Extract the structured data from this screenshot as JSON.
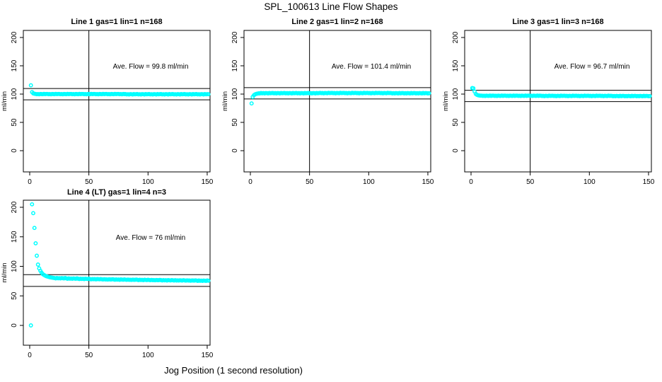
{
  "chart_data": {
    "type": "scatter",
    "title": "SPL_100613  Line Flow Shapes",
    "xlabel": "Jog Position (1 second resolution)",
    "ylabel": "ml/min",
    "marker_color": "#00FFFF",
    "axis_color": "#000000",
    "grid": false,
    "x_ticks": [
      0,
      50,
      100,
      150
    ],
    "y_ticks": [
      0,
      50,
      100,
      150,
      200
    ],
    "xlim": [
      -5,
      152
    ],
    "ylim": [
      -37,
      212
    ],
    "plots": [
      {
        "title": "Line 1 gas=1 lin=1 n=168",
        "annotation": "Ave. Flow =  99.8  ml/min",
        "ave_flow": 99.8,
        "ref_lines_y": [
          109.8,
          89.8
        ],
        "ref_line_x": 50,
        "x_start": 1,
        "x_step": 1,
        "y": [
          115.5,
          103.5,
          101.2,
          100.6,
          100.3,
          99.8,
          100.1,
          99.6,
          100.2,
          100,
          99.7,
          100.4,
          99.9,
          100.2,
          100.3,
          99.8,
          100.1,
          99.6,
          100.2,
          100,
          99.7,
          100.4,
          99.9,
          100.2,
          100.3,
          99.8,
          100.1,
          99.6,
          100.2,
          100,
          99.7,
          100.4,
          99.9,
          100.2,
          100.3,
          99.8,
          100.1,
          99.6,
          100.2,
          100,
          99.7,
          100.4,
          99.9,
          100.2,
          100.3,
          99.8,
          100.1,
          99.6,
          100.2,
          100,
          99.7,
          100.4,
          99.9,
          100.2,
          100.3,
          99.8,
          100.1,
          99.6,
          100.2,
          100,
          99.7,
          100.4,
          99.9,
          100.2,
          100.3,
          99.8,
          100.1,
          99.6,
          100.2,
          100,
          99.7,
          100.4,
          99.9,
          100.2,
          100.3,
          99.8,
          100.1,
          99.6,
          100.2,
          100,
          100,
          99.5,
          99.8,
          99.3,
          99.9,
          99.7,
          99.4,
          100.1,
          99.6,
          99.9,
          100,
          99.5,
          99.8,
          99.3,
          99.9,
          99.7,
          99.4,
          100.1,
          99.6,
          99.9,
          100,
          99.5,
          99.8,
          99.3,
          99.9,
          99.7,
          99.4,
          100.1,
          99.6,
          99.9,
          100,
          99.5,
          99.8,
          99.3,
          99.9,
          99.7,
          99.4,
          100.1,
          99.6,
          99.9,
          100,
          99.5,
          99.8,
          99.3,
          99.9,
          99.7,
          99.4,
          100.1,
          99.6,
          99.9,
          100,
          99.5,
          99.8,
          99.3,
          99.9,
          99.7,
          99.4,
          100.1,
          99.6,
          99.9,
          100,
          99.5,
          99.8,
          99.3,
          99.9,
          99.7,
          99.4,
          100.1,
          99.6,
          99.9,
          99.8
        ]
      },
      {
        "title": "Line 2 gas=1 lin=2 n=168",
        "annotation": "Ave. Flow =  101.4  ml/min",
        "ave_flow": 101.4,
        "ref_lines_y": [
          111.4,
          91.4
        ],
        "ref_line_x": 50,
        "x_start": 1,
        "x_step": 1,
        "y": [
          83.5,
          95,
          98,
          99.6,
          100.4,
          100.9,
          101.2,
          101.3,
          101.9,
          101.4,
          101.7,
          101.2,
          101.8,
          101.6,
          101.3,
          102,
          101.5,
          101.8,
          101.9,
          101.4,
          101.7,
          101.2,
          101.8,
          101.6,
          101.3,
          102,
          101.5,
          101.8,
          101.9,
          101.4,
          101.7,
          101.2,
          101.8,
          101.6,
          101.3,
          102,
          101.5,
          101.8,
          101.9,
          101.4,
          101.7,
          101.2,
          101.8,
          101.6,
          101.3,
          102,
          101.5,
          101.8,
          101.9,
          101.4,
          101.7,
          101.2,
          101.8,
          101.6,
          101.3,
          102,
          101.5,
          101.8,
          102.1,
          101.6,
          101.9,
          101.4,
          102,
          101.8,
          101.5,
          102.2,
          101.7,
          102,
          102.1,
          101.6,
          101.9,
          101.4,
          102,
          101.8,
          101.5,
          102.2,
          101.7,
          102,
          102.1,
          101.6,
          101.9,
          101.4,
          102,
          101.8,
          101.5,
          102.2,
          101.7,
          102,
          102.1,
          101.6,
          101.9,
          101.4,
          102,
          101.8,
          101.5,
          102.2,
          101.7,
          102,
          102.1,
          101.6,
          101.9,
          101.4,
          102,
          101.8,
          101.5,
          102.2,
          101.7,
          102,
          102.1,
          101.6,
          101.9,
          101.4,
          102,
          101.8,
          101.5,
          102.2,
          101.7,
          102,
          101.8,
          101.3,
          101.6,
          101.1,
          101.7,
          101.5,
          101.2,
          101.9,
          101.4,
          101.7,
          101.8,
          101.3,
          101.6,
          101.1,
          101.7,
          101.5,
          101.2,
          101.9,
          101.4,
          101.7,
          101.8,
          101.3,
          101.6,
          101.1,
          101.7,
          101.5,
          101.2,
          101.9,
          101.4,
          101.7,
          101.6,
          101.3,
          101.5
        ]
      },
      {
        "title": "Line 3 gas=1 lin=3 n=168",
        "annotation": "Ave. Flow =  96.7  ml/min",
        "ave_flow": 96.7,
        "ref_lines_y": [
          106.7,
          86.7
        ],
        "ref_line_x": 50,
        "x_start": 1,
        "x_step": 1,
        "y": [
          110.8,
          110.2,
          104.6,
          100.2,
          98.6,
          97.9,
          97.5,
          97.2,
          97.3,
          96.8,
          97.1,
          96.6,
          97.2,
          97,
          96.7,
          97.4,
          96.9,
          97.2,
          97.3,
          96.8,
          97.1,
          96.6,
          97.2,
          97,
          96.7,
          97.4,
          96.9,
          97.2,
          97.3,
          96.8,
          97.1,
          96.6,
          97.2,
          97,
          96.7,
          97.4,
          96.9,
          97.2,
          97.3,
          96.8,
          97.1,
          96.6,
          97.2,
          97,
          96.7,
          97.4,
          96.9,
          97.2,
          97.3,
          96.8,
          97.1,
          96.6,
          97.2,
          97,
          96.7,
          97.4,
          96.9,
          97.2,
          97.1,
          96.6,
          96.9,
          96.4,
          97,
          96.8,
          96.5,
          97.2,
          96.7,
          97,
          97.1,
          96.6,
          96.9,
          96.4,
          97,
          96.8,
          96.5,
          97.2,
          96.7,
          97,
          97.1,
          96.6,
          96.9,
          96.4,
          97,
          96.8,
          96.5,
          97.2,
          96.7,
          97,
          97.1,
          96.6,
          96.9,
          96.4,
          97,
          96.8,
          96.5,
          97.2,
          96.7,
          97,
          97.1,
          96.6,
          96.9,
          96.4,
          97,
          96.8,
          96.5,
          97.2,
          96.7,
          97,
          97.1,
          96.6,
          96.9,
          96.4,
          97,
          96.8,
          96.5,
          97.2,
          96.7,
          97,
          96.8,
          96.3,
          96.6,
          96.1,
          96.7,
          96.5,
          96.2,
          96.9,
          96.4,
          96.7,
          96.8,
          96.3,
          96.6,
          96.1,
          96.7,
          96.5,
          96.2,
          96.9,
          96.4,
          96.7,
          96.8,
          96.3,
          96.6,
          96.1,
          96.7,
          96.5,
          96.2,
          96.9,
          96.4,
          96.7,
          96.6,
          96.3,
          96.5
        ]
      },
      {
        "title": "Line 4 (LT) gas=1 lin=4 n=3",
        "annotation": "Ave. Flow =  76  ml/min",
        "ave_flow": 76,
        "ref_lines_y": [
          86,
          66
        ],
        "ref_line_x": 50,
        "x_start": 1,
        "x_step": 1,
        "y": [
          0,
          205,
          190,
          165,
          139,
          118,
          103,
          96.5,
          92.5,
          89.5,
          87,
          85.5,
          84.3,
          83.4,
          82.7,
          82.1,
          81.6,
          81.2,
          80.8,
          80.5,
          80.1,
          79.7,
          80.2,
          79.8,
          80,
          79.6,
          80.1,
          79.9,
          79.7,
          80.2,
          79.5,
          79.1,
          79.6,
          79.2,
          79.4,
          79,
          79.5,
          79.3,
          79.1,
          79.6,
          79,
          78.6,
          79.1,
          78.7,
          78.9,
          78.5,
          79,
          78.8,
          78.6,
          79.1,
          78.5,
          78.1,
          78.6,
          78.2,
          78.4,
          78,
          78.5,
          78.3,
          78.1,
          78.6,
          78.1,
          77.7,
          78.2,
          77.8,
          78,
          77.6,
          78.1,
          77.9,
          77.7,
          78.2,
          77.8,
          77.4,
          77.9,
          77.5,
          77.7,
          77.3,
          77.8,
          77.6,
          77.4,
          77.9,
          77.5,
          77.1,
          77.6,
          77.2,
          77.4,
          77,
          77.5,
          77.3,
          77.1,
          77.6,
          77.2,
          76.8,
          77.3,
          76.9,
          77.1,
          76.7,
          77.2,
          77,
          76.8,
          77.3,
          76.9,
          76.5,
          77,
          76.6,
          76.8,
          76.4,
          76.9,
          76.7,
          76.5,
          77,
          76.6,
          76.2,
          76.7,
          76.3,
          76.5,
          76.1,
          76.6,
          76.4,
          76.2,
          76.7,
          76.4,
          76,
          76.5,
          76.1,
          76.3,
          75.9,
          76.4,
          76.2,
          76,
          76.5,
          76.2,
          75.8,
          76.3,
          75.9,
          76.1,
          75.7,
          76.2,
          76,
          75.8,
          76.3,
          75.9,
          75.5,
          76,
          75.6,
          75.8,
          75.4,
          75.9,
          75.7,
          75.5,
          76,
          75.7
        ]
      }
    ]
  }
}
